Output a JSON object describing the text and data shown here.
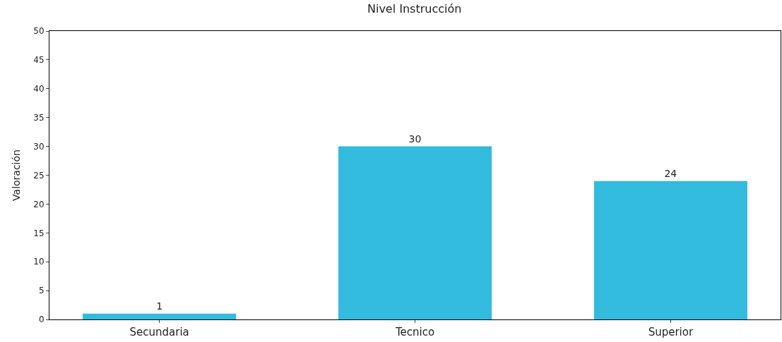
{
  "chart_data": {
    "type": "bar",
    "title": "Nivel Instrucción",
    "ylabel": "Valoración",
    "categories": [
      "Secundaria",
      "Tecnico",
      "Superior"
    ],
    "values": [
      1,
      30,
      24
    ],
    "color": "#33bbdd",
    "ylim": [
      0,
      50
    ],
    "yticks": [
      0,
      5,
      10,
      15,
      20,
      25,
      30,
      35,
      40,
      45,
      50
    ],
    "data_labels": true
  }
}
